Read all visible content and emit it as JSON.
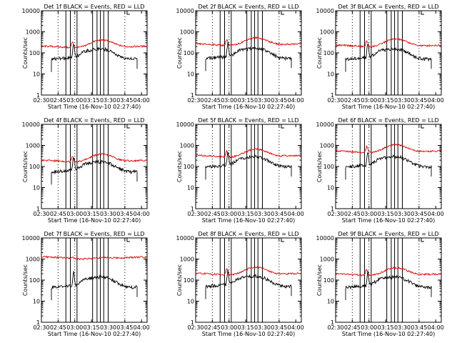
{
  "figure": {
    "colors": {
      "events": "#000000",
      "lld": "#e00000",
      "background": "#ffffff",
      "axis": "#000000"
    }
  },
  "chart_data": [
    {
      "type": "line",
      "title": "Det 1f BLACK = Events, RED = LLD",
      "xlabel": "Start Time (16-Nov-10 02:27:40)",
      "ylabel": "Counts/sec",
      "yscale": "log",
      "ylim": [
        1,
        10000
      ],
      "xlim": [
        "02:30",
        "04:05"
      ],
      "xticks": [
        "02:30",
        "02:45",
        "03:00",
        "03:15",
        "03:30",
        "03:45",
        "04:00"
      ],
      "yticks": [
        "1",
        "10",
        "100",
        "1000",
        "10000"
      ],
      "grid": false,
      "legend": "none",
      "red_base": 180,
      "black_base": 50,
      "black_start": "02:39",
      "black_end": "03:56"
    },
    {
      "type": "line",
      "title": "Det 2f BLACK = Events, RED = LLD",
      "xlabel": "Start Time (16-Nov-10 02:27:40)",
      "ylabel": "Counts/sec",
      "yscale": "log",
      "ylim": [
        1,
        10000
      ],
      "xlim": [
        "02:30",
        "04:05"
      ],
      "xticks": [
        "02:30",
        "02:45",
        "03:00",
        "03:15",
        "03:30",
        "03:45",
        "04:00"
      ],
      "yticks": [
        "1",
        "10",
        "100",
        "1000",
        "10000"
      ],
      "grid": false,
      "legend": "none",
      "red_base": 230,
      "black_base": 55,
      "black_start": "02:39",
      "black_end": "03:56"
    },
    {
      "type": "line",
      "title": "Det 3f BLACK = Events, RED = LLD",
      "xlabel": "Start Time (16-Nov-10 02:27:40)",
      "ylabel": "Counts/sec",
      "yscale": "log",
      "ylim": [
        1,
        10000
      ],
      "xlim": [
        "02:30",
        "04:05"
      ],
      "xticks": [
        "02:30",
        "02:45",
        "03:00",
        "03:15",
        "03:30",
        "03:45",
        "04:00"
      ],
      "yticks": [
        "1",
        "10",
        "100",
        "1000",
        "10000"
      ],
      "grid": false,
      "legend": "none",
      "red_base": 200,
      "black_base": 50,
      "black_start": "02:39",
      "black_end": "03:56"
    },
    {
      "type": "line",
      "title": "Det 4f BLACK = Events, RED = LLD",
      "xlabel": "Start Time (16-Nov-10 02:27:40)",
      "ylabel": "Counts/sec",
      "yscale": "log",
      "ylim": [
        1,
        10000
      ],
      "xlim": [
        "02:30",
        "04:05"
      ],
      "xticks": [
        "02:30",
        "02:45",
        "03:00",
        "03:15",
        "03:30",
        "03:45",
        "04:00"
      ],
      "yticks": [
        "1",
        "10",
        "100",
        "1000",
        "10000"
      ],
      "grid": false,
      "legend": "none",
      "red_base": 170,
      "black_base": 55,
      "black_start": "02:39",
      "black_end": "03:56"
    },
    {
      "type": "line",
      "title": "Det 5f BLACK = Events, RED = LLD",
      "xlabel": "Start Time (16-Nov-10 02:27:40)",
      "ylabel": "Counts/sec",
      "yscale": "log",
      "ylim": [
        1,
        10000
      ],
      "xlim": [
        "02:30",
        "04:05"
      ],
      "xticks": [
        "02:30",
        "02:45",
        "03:00",
        "03:15",
        "03:30",
        "03:45",
        "04:00"
      ],
      "yticks": [
        "1",
        "10",
        "100",
        "1000",
        "10000"
      ],
      "grid": false,
      "legend": "none",
      "red_base": 290,
      "black_base": 95,
      "black_start": "02:39",
      "black_end": "03:56"
    },
    {
      "type": "line",
      "title": "Det 6f BLACK = Events, RED = LLD",
      "xlabel": "Start Time (16-Nov-10 02:27:40)",
      "ylabel": "Counts/sec",
      "yscale": "log",
      "ylim": [
        1,
        10000
      ],
      "xlim": [
        "02:30",
        "04:05"
      ],
      "xticks": [
        "02:30",
        "02:45",
        "03:00",
        "03:15",
        "03:30",
        "03:45",
        "04:00"
      ],
      "yticks": [
        "1",
        "10",
        "100",
        "1000",
        "10000"
      ],
      "grid": false,
      "legend": "none",
      "red_base": 470,
      "black_base": 95,
      "black_start": "02:39",
      "black_end": "03:56"
    },
    {
      "type": "line",
      "title": "Det 7f BLACK = Events, RED = LLD",
      "xlabel": "Start Time (16-Nov-10 02:27:40)",
      "ylabel": "Counts/sec",
      "yscale": "log",
      "ylim": [
        1,
        10000
      ],
      "xlim": [
        "02:30",
        "04:05"
      ],
      "xticks": [
        "02:30",
        "02:45",
        "03:00",
        "03:15",
        "03:30",
        "03:45",
        "04:00"
      ],
      "yticks": [
        "1",
        "10",
        "100",
        "1000",
        "10000"
      ],
      "grid": false,
      "legend": "none",
      "red_base": 1100,
      "black_base": 45,
      "black_start": "02:39",
      "black_end": "03:56"
    },
    {
      "type": "line",
      "title": "Det 8f BLACK = Events, RED = LLD",
      "xlabel": "Start Time (16-Nov-10 02:27:40)",
      "ylabel": "Counts/sec",
      "yscale": "log",
      "ylim": [
        1,
        10000
      ],
      "xlim": [
        "02:30",
        "04:05"
      ],
      "xticks": [
        "02:30",
        "02:45",
        "03:00",
        "03:15",
        "03:30",
        "03:45",
        "04:00"
      ],
      "yticks": [
        "1",
        "10",
        "100",
        "1000",
        "10000"
      ],
      "grid": false,
      "legend": "none",
      "red_base": 180,
      "black_base": 50,
      "black_start": "02:39",
      "black_end": "03:56"
    },
    {
      "type": "line",
      "title": "Det 9f BLACK = Events, RED = LLD",
      "xlabel": "Start Time (16-Nov-10 02:27:40)",
      "ylabel": "Counts/sec",
      "yscale": "log",
      "ylim": [
        1,
        10000
      ],
      "xlim": [
        "02:30",
        "04:05"
      ],
      "xticks": [
        "02:30",
        "02:45",
        "03:00",
        "03:15",
        "03:30",
        "03:45",
        "04:00"
      ],
      "yticks": [
        "1",
        "10",
        "100",
        "1000",
        "10000"
      ],
      "grid": false,
      "legend": "none",
      "red_base": 170,
      "black_base": 45,
      "black_start": "02:39",
      "black_end": "03:56"
    }
  ]
}
